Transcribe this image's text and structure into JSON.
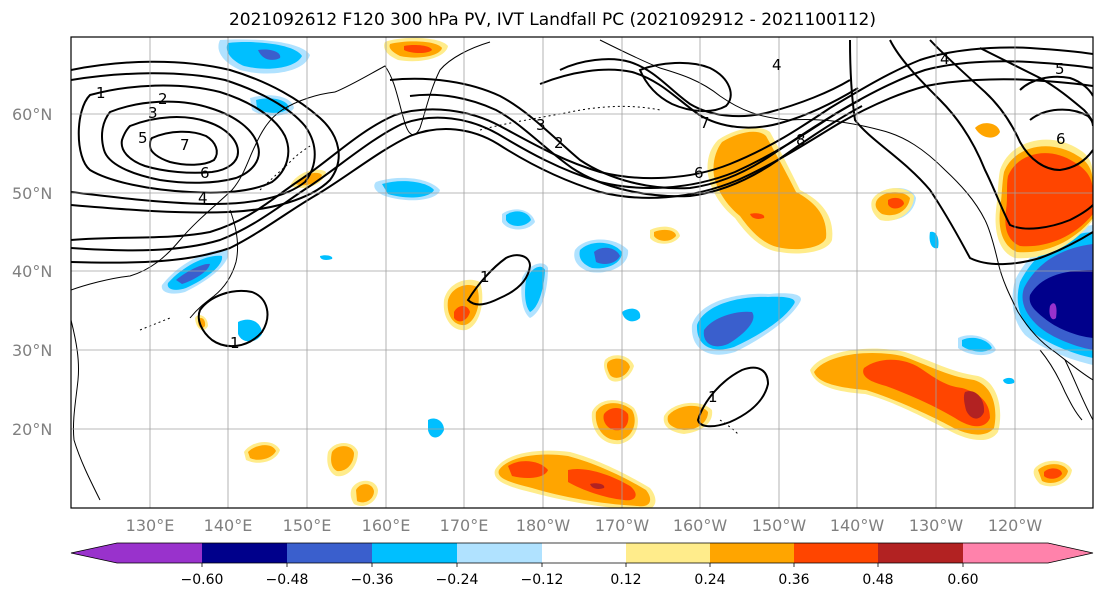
{
  "title": "2021092612 F120 300 hPa PV, IVT Landfall PC (2021092912 - 2021100112)",
  "lat_labels": [
    "60°N",
    "50°N",
    "40°N",
    "30°N",
    "20°N"
  ],
  "lon_labels": [
    "130°E",
    "140°E",
    "150°E",
    "160°E",
    "170°E",
    "180°W",
    "170°W",
    "160°W",
    "150°W",
    "140°W",
    "130°W",
    "120°W"
  ],
  "colorbar": {
    "tick_labels": [
      "−0.60",
      "−0.48",
      "−0.36",
      "−0.24",
      "−0.12",
      "0.12",
      "0.24",
      "0.36",
      "0.48",
      "0.60"
    ],
    "colors": [
      "#9932cc",
      "#00008b",
      "#3a5fcd",
      "#00bfff",
      "#b0e2ff",
      "#ffffff",
      "#ffec8b",
      "#ffa500",
      "#ff4500",
      "#b22222",
      "#ff82ab"
    ]
  },
  "contour_labels": [
    "1",
    "2",
    "3",
    "5",
    "7",
    "6",
    "4",
    "3",
    "2",
    "4",
    "7",
    "8",
    "6",
    "4",
    "5",
    "6",
    "1",
    "1",
    "1"
  ],
  "shading_colors": {
    "neg_light": "#b0e2ff",
    "neg_mid": "#00bfff",
    "neg_strong": "#3a5fcd",
    "neg_max": "#00008b",
    "neg_ext": "#9932cc",
    "pos_light": "#ffec8b",
    "pos_mid": "#ffa500",
    "pos_strong": "#ff4500",
    "pos_max": "#b22222"
  }
}
